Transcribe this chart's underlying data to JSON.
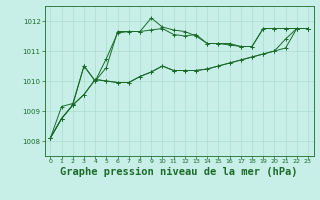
{
  "background_color": "#c8eee8",
  "grid_color": "#aaddcc",
  "line_color": "#1a6b2a",
  "xlabel": "Graphe pression niveau de la mer (hPa)",
  "xlabel_fontsize": 7.5,
  "ylim": [
    1007.5,
    1012.5
  ],
  "xlim": [
    -0.5,
    23.5
  ],
  "yticks": [
    1008,
    1009,
    1010,
    1011,
    1012
  ],
  "xticks": [
    0,
    1,
    2,
    3,
    4,
    5,
    6,
    7,
    8,
    9,
    10,
    11,
    12,
    13,
    14,
    15,
    16,
    17,
    18,
    19,
    20,
    21,
    22,
    23
  ],
  "series": [
    [
      1008.1,
      1008.75,
      1009.2,
      1009.55,
      1010.05,
      1010.0,
      1009.95,
      1009.95,
      1010.15,
      1010.3,
      1010.5,
      1010.35,
      1010.35,
      1010.35,
      1010.4,
      1010.5,
      1010.6,
      1010.7,
      1010.8,
      1010.9,
      1011.0,
      1011.1,
      1011.75,
      1011.75
    ],
    [
      1008.1,
      1008.75,
      1009.2,
      1009.55,
      1010.05,
      1010.0,
      1009.95,
      1009.95,
      1010.15,
      1010.3,
      1010.5,
      1010.35,
      1010.35,
      1010.35,
      1010.4,
      1010.5,
      1010.6,
      1010.7,
      1010.8,
      1010.9,
      1011.0,
      1011.4,
      1011.75,
      1011.75
    ],
    [
      1008.1,
      1008.75,
      1009.2,
      1010.5,
      1010.0,
      1010.75,
      1011.6,
      1011.65,
      1011.65,
      1012.1,
      1011.8,
      1011.7,
      1011.65,
      1011.5,
      1011.25,
      1011.25,
      1011.2,
      1011.15,
      1011.15,
      1011.75,
      1011.75,
      1011.75,
      1011.75,
      1011.75
    ],
    [
      1008.1,
      1009.15,
      1009.25,
      1010.5,
      1010.0,
      1010.45,
      1011.65,
      1011.65,
      1011.65,
      1011.7,
      1011.75,
      1011.55,
      1011.5,
      1011.55,
      1011.25,
      1011.25,
      1011.25,
      1011.15,
      1011.15,
      1011.75,
      1011.75,
      1011.75,
      1011.75,
      1011.75
    ]
  ]
}
